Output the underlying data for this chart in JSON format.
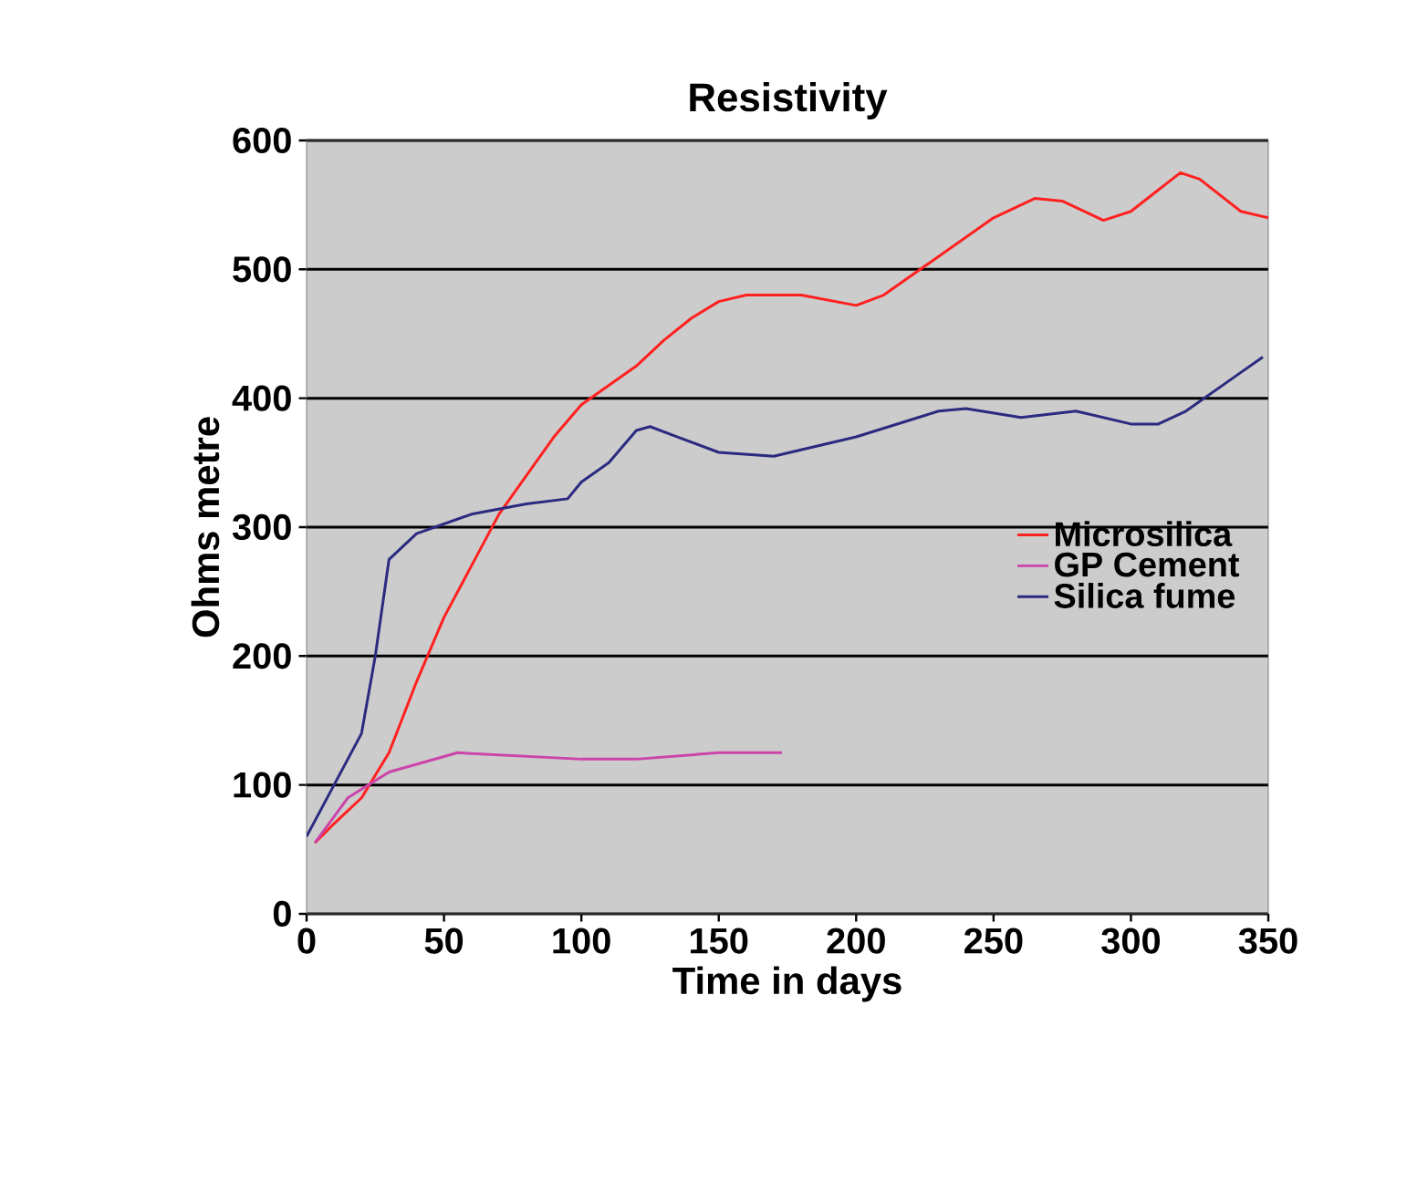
{
  "chart_data": {
    "type": "line",
    "title": "Resistivity",
    "xlabel": "Time in days",
    "ylabel": "Ohms metre",
    "xlim": [
      0,
      350
    ],
    "xticks": [
      0,
      50,
      100,
      150,
      200,
      250,
      300,
      350
    ],
    "ylim": [
      0,
      600
    ],
    "yticks": [
      0,
      100,
      200,
      300,
      400,
      500,
      600
    ],
    "grid": "y",
    "legend": "right",
    "marker": "none",
    "line_style": "solid",
    "series": [
      {
        "name": "Microsilica",
        "color": "#ff2020",
        "x": [
          3,
          10,
          20,
          30,
          40,
          50,
          60,
          70,
          80,
          90,
          100,
          110,
          120,
          130,
          140,
          150,
          160,
          180,
          200,
          210,
          230,
          250,
          265,
          275,
          290,
          300,
          318,
          325,
          340,
          350
        ],
        "values": [
          55,
          70,
          90,
          125,
          180,
          230,
          270,
          310,
          340,
          370,
          395,
          410,
          425,
          445,
          462,
          475,
          480,
          480,
          472,
          480,
          510,
          540,
          555,
          553,
          538,
          545,
          575,
          570,
          545,
          540
        ]
      },
      {
        "name": "GP Cement",
        "color": "#cc44aa",
        "x": [
          3,
          15,
          30,
          55,
          100,
          120,
          150,
          173
        ],
        "values": [
          55,
          90,
          110,
          125,
          120,
          120,
          125,
          125
        ]
      },
      {
        "name": "Silica fume",
        "color": "#2a2a80",
        "x": [
          0,
          10,
          20,
          25,
          30,
          40,
          60,
          80,
          95,
          100,
          110,
          120,
          125,
          135,
          150,
          170,
          200,
          230,
          240,
          260,
          280,
          300,
          310,
          320,
          340,
          348
        ],
        "values": [
          60,
          100,
          140,
          200,
          275,
          295,
          310,
          318,
          322,
          335,
          350,
          375,
          378,
          370,
          358,
          355,
          370,
          390,
          392,
          385,
          390,
          380,
          380,
          390,
          420,
          432
        ]
      }
    ]
  }
}
